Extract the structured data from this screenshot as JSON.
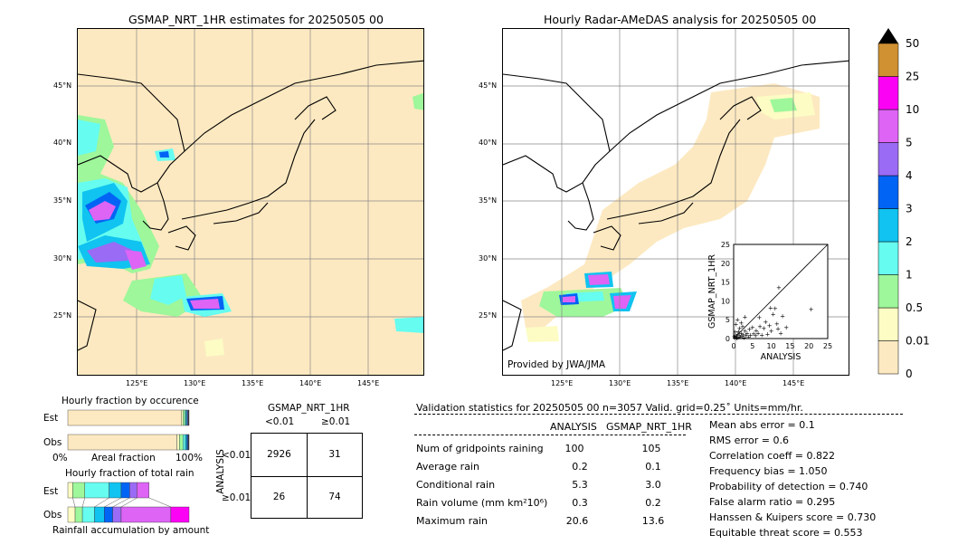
{
  "chart_data": [
    {
      "type": "map",
      "title": "GSMAP_NRT_1HR estimates for 20250505 00",
      "x_ticks": [
        "125°E",
        "130°E",
        "135°E",
        "140°E",
        "145°E"
      ],
      "y_ticks": [
        "25°N",
        "30°N",
        "35°N",
        "40°N",
        "45°N"
      ]
    },
    {
      "type": "map",
      "title": "Hourly Radar-AMeDAS analysis for 20250505 00",
      "x_ticks": [
        "125°E",
        "130°E",
        "135°E",
        "140°E",
        "145°E"
      ],
      "y_ticks": [
        "25°N",
        "30°N",
        "35°N",
        "40°N",
        "45°N"
      ],
      "credit": "Provided by JWA/JMA"
    },
    {
      "type": "scatter",
      "xlabel": "ANALYSIS",
      "ylabel": "GSMAP_NRT_1HR",
      "xlim": [
        0,
        25
      ],
      "ylim": [
        0,
        25
      ],
      "ticks": [
        0,
        5,
        10,
        15,
        20,
        25
      ],
      "points": [
        [
          0.3,
          0.2
        ],
        [
          0.5,
          0.8
        ],
        [
          0.8,
          0.4
        ],
        [
          1.0,
          1.2
        ],
        [
          1.2,
          0.3
        ],
        [
          1.5,
          0.9
        ],
        [
          1.8,
          0.5
        ],
        [
          2.0,
          1.5
        ],
        [
          2.2,
          0.6
        ],
        [
          2.5,
          1.1
        ],
        [
          2.8,
          0.2
        ],
        [
          3.0,
          2.0
        ],
        [
          3.3,
          0.9
        ],
        [
          3.6,
          1.4
        ],
        [
          4.0,
          0.5
        ],
        [
          4.2,
          2.5
        ],
        [
          4.5,
          1.0
        ],
        [
          5.0,
          3.0
        ],
        [
          5.3,
          1.3
        ],
        [
          5.8,
          0.8
        ],
        [
          6.0,
          2.2
        ],
        [
          6.5,
          1.5
        ],
        [
          7.0,
          3.2
        ],
        [
          7.5,
          1.0
        ],
        [
          8.0,
          2.8
        ],
        [
          8.5,
          4.5
        ],
        [
          9.0,
          1.2
        ],
        [
          9.5,
          3.5
        ],
        [
          10.0,
          2.0
        ],
        [
          10.5,
          6.5
        ],
        [
          11.0,
          8.0
        ],
        [
          11.5,
          4.0
        ],
        [
          12.0,
          13.6
        ],
        [
          12.5,
          1.5
        ],
        [
          13.0,
          6.0
        ],
        [
          14.0,
          3.0
        ],
        [
          20.6,
          7.8
        ],
        [
          0.6,
          3.8
        ],
        [
          1.0,
          5.0
        ],
        [
          2.0,
          4.2
        ],
        [
          3.0,
          5.8
        ],
        [
          0.2,
          0.6
        ],
        [
          0.4,
          1.8
        ],
        [
          1.6,
          2.8
        ],
        [
          2.4,
          3.2
        ],
        [
          0.9,
          0.1
        ],
        [
          1.3,
          1.9
        ],
        [
          6.8,
          5.6
        ],
        [
          9.8,
          8.2
        ],
        [
          11.8,
          2.6
        ]
      ]
    },
    {
      "type": "colorbar",
      "labels": [
        "0",
        "0.01",
        "0.5",
        "1",
        "2",
        "3",
        "4",
        "5",
        "10",
        "25",
        "50"
      ],
      "colors": [
        "#fde9c1",
        "#fcfcc4",
        "#9ef79a",
        "#66fcf0",
        "#10c3f0",
        "#0264f5",
        "#9a6bf5",
        "#dd64f5",
        "#fc02f5",
        "#cf9132"
      ]
    },
    {
      "type": "bar",
      "title": "Hourly fraction by occurence",
      "categories": [
        "Est",
        "Obs"
      ],
      "xlabel": "Areal fraction",
      "x_tick_labels": [
        "0%",
        "100%"
      ],
      "segments": [
        [
          {
            "color": "#fde9c1",
            "value": 0.935
          },
          {
            "color": "#fcfcc4",
            "value": 0.015
          },
          {
            "color": "#9ef79a",
            "value": 0.015
          },
          {
            "color": "#66fcf0",
            "value": 0.01
          },
          {
            "color": "#10c3f0",
            "value": 0.008
          },
          {
            "color": "#0264f5",
            "value": 0.006
          },
          {
            "color": "#dd64f5",
            "value": 0.006
          },
          {
            "color": "#333333",
            "value": 0.005
          }
        ],
        [
          {
            "color": "#fde9c1",
            "value": 0.9
          },
          {
            "color": "#fcfcc4",
            "value": 0.02
          },
          {
            "color": "#9ef79a",
            "value": 0.03
          },
          {
            "color": "#66fcf0",
            "value": 0.02
          },
          {
            "color": "#10c3f0",
            "value": 0.012
          },
          {
            "color": "#0264f5",
            "value": 0.008
          },
          {
            "color": "#dd64f5",
            "value": 0.005
          },
          {
            "color": "#333333",
            "value": 0.005
          }
        ]
      ]
    },
    {
      "type": "bar",
      "title": "Hourly fraction of total rain",
      "categories": [
        "Est",
        "Obs"
      ],
      "xlabel": "Rainfall accumulation by amount",
      "segments": [
        [
          {
            "color": "#fcfcc4",
            "value": 0.04
          },
          {
            "color": "#9ef79a",
            "value": 0.1
          },
          {
            "color": "#66fcf0",
            "value": 0.2
          },
          {
            "color": "#10c3f0",
            "value": 0.1
          },
          {
            "color": "#0264f5",
            "value": 0.07
          },
          {
            "color": "#9a6bf5",
            "value": 0.06
          },
          {
            "color": "#dd64f5",
            "value": 0.1
          }
        ],
        [
          {
            "color": "#fcfcc4",
            "value": 0.06
          },
          {
            "color": "#9ef79a",
            "value": 0.06
          },
          {
            "color": "#66fcf0",
            "value": 0.1
          },
          {
            "color": "#10c3f0",
            "value": 0.08
          },
          {
            "color": "#0264f5",
            "value": 0.07
          },
          {
            "color": "#9a6bf5",
            "value": 0.07
          },
          {
            "color": "#dd64f5",
            "value": 0.41
          },
          {
            "color": "#fc02f5",
            "value": 0.15
          }
        ]
      ]
    },
    {
      "type": "table",
      "title": "GSMAP_NRT_1HR",
      "col_headers": [
        "<0.01",
        "≥0.01"
      ],
      "row_axis_label": "ANALYSIS",
      "row_headers": [
        "<0.01",
        "≥0.01"
      ],
      "cells": [
        [
          "2926",
          "31"
        ],
        [
          "26",
          "74"
        ]
      ]
    }
  ],
  "validation": {
    "header": "Validation statistics for 20250505 00  n=3057 Valid. grid=0.25˚ Units=mm/hr.",
    "col_analysis": "ANALYSIS",
    "col_gsmap": "GSMAP_NRT_1HR",
    "rows": [
      {
        "label": "Num of gridpoints raining",
        "analysis": "100",
        "gsmap": "105"
      },
      {
        "label": "Average rain",
        "analysis": "0.2",
        "gsmap": "0.1"
      },
      {
        "label": "Conditional rain",
        "analysis": "5.3",
        "gsmap": "3.0"
      },
      {
        "label": "Rain volume (mm km²10⁶)",
        "analysis": "0.3",
        "gsmap": "0.2"
      },
      {
        "label": "Maximum rain",
        "analysis": "20.6",
        "gsmap": "13.6"
      }
    ],
    "scores": [
      "Mean abs error =    0.1",
      "RMS error =    0.6",
      "Correlation coeff =  0.822",
      "Frequency bias =  1.050",
      "Probability of detection =  0.740",
      "False alarm ratio =  0.295",
      "Hanssen & Kuipers score =  0.730",
      "Equitable threat score =  0.553"
    ]
  }
}
